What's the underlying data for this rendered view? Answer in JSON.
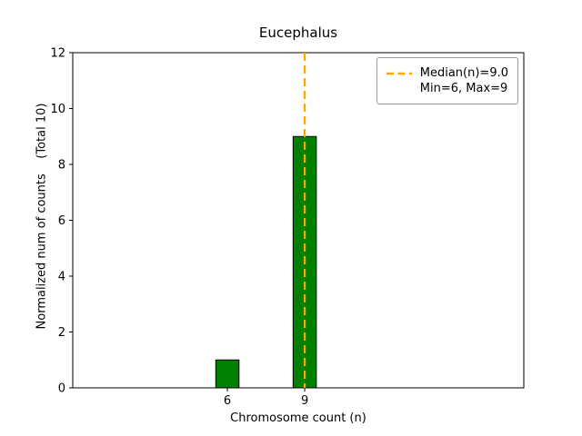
{
  "chart_data": {
    "type": "bar",
    "title": "Eucephalus",
    "xlabel": "Chromosome count (n)",
    "ylabel": "Normalized num of counts    (Total 10)",
    "categories": [
      6,
      9
    ],
    "values": [
      1,
      9
    ],
    "bar_width_units": 0.9,
    "bar_color": "#008000",
    "bar_edge_color": "#000000",
    "xlim": [
      0,
      17.5
    ],
    "ylim": [
      0,
      12
    ],
    "xticks": [
      6,
      9
    ],
    "yticks": [
      0,
      2,
      4,
      6,
      8,
      10,
      12
    ],
    "grid": false,
    "median_line": {
      "x": 9.0,
      "color": "#ffa500",
      "style": "dashed",
      "label": "Median(n)=9.0"
    },
    "legend": {
      "position": "upper right",
      "entries": [
        {
          "handle": "dashed-line",
          "color": "#ffa500",
          "label": "Median(n)=9.0"
        },
        {
          "handle": "none",
          "label": "Min=6, Max=9"
        }
      ]
    }
  }
}
